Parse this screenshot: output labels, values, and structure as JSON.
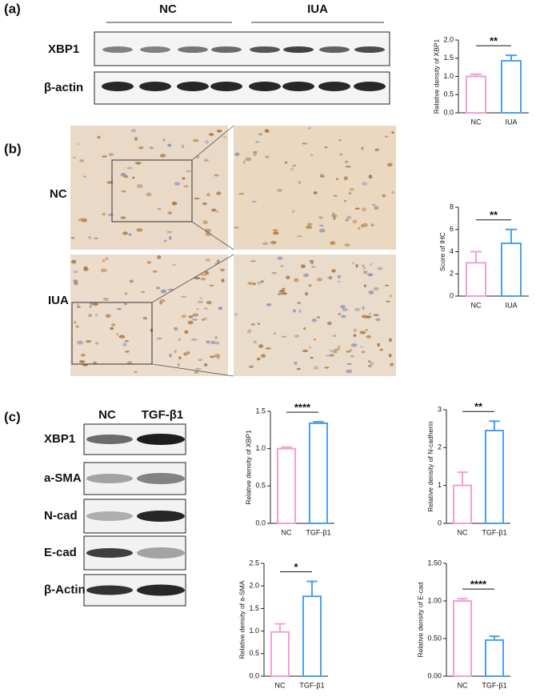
{
  "figure": {
    "a": {
      "label": "(a)",
      "blot_groups": [
        "NC",
        "IUA"
      ],
      "blot_rows": [
        "XBP1",
        "β-actin"
      ]
    },
    "b": {
      "label": "(b)",
      "rows": [
        "NC",
        "IUA"
      ]
    },
    "c": {
      "label": "(c)",
      "blot_groups": [
        "NC",
        "TGF-β1"
      ],
      "blot_rows": [
        "XBP1",
        "a-SMA",
        "N-cad",
        "E-cad",
        "β-Actin"
      ]
    }
  },
  "chart_data": [
    {
      "type": "bar",
      "ylabel": "Relative density of XBP1",
      "categories": [
        "NC",
        "IUA"
      ],
      "values": [
        1.0,
        1.43
      ],
      "errors": [
        0.06,
        0.15
      ],
      "colors": [
        "#f29fd8",
        "#4aa0ee"
      ],
      "ylim": [
        0,
        2
      ],
      "yticks": [
        {
          "value": 0,
          "label": "0.0"
        },
        0.5,
        {
          "value": 1,
          "label": "1.0"
        },
        1.5,
        {
          "value": 2,
          "label": "2.0"
        }
      ],
      "annotation": "**"
    },
    {
      "type": "bar",
      "ylabel": "Score of IHC",
      "categories": [
        "NC",
        "IUA"
      ],
      "values": [
        3.0,
        4.75
      ],
      "errors": [
        1.0,
        1.25
      ],
      "colors": [
        "#f29fd8",
        "#4aa0ee"
      ],
      "ylim": [
        0,
        8
      ],
      "yticks": [
        0,
        2,
        4,
        6,
        8
      ],
      "annotation": "**"
    },
    {
      "type": "bar",
      "ylabel": "Relative density of XBP1",
      "categories": [
        "NC",
        "TGF-β1"
      ],
      "values": [
        1.0,
        1.34
      ],
      "errors": [
        0.02,
        0.02
      ],
      "colors": [
        "#f29fd8",
        "#4aa0ee"
      ],
      "ylim": [
        0,
        1.5
      ],
      "yticks": [
        {
          "value": 0,
          "label": "0.0"
        },
        0.5,
        {
          "value": 1,
          "label": "1.0"
        },
        1.5
      ],
      "annotation": "****"
    },
    {
      "type": "bar",
      "ylabel": "Relative density of N-cadherin",
      "categories": [
        "NC",
        "TGF-β1"
      ],
      "values": [
        1.0,
        2.45
      ],
      "errors": [
        0.35,
        0.25
      ],
      "colors": [
        "#f29fd8",
        "#4aa0ee"
      ],
      "ylim": [
        0,
        3
      ],
      "yticks": [
        0,
        1,
        2,
        3
      ],
      "annotation": "**"
    },
    {
      "type": "bar",
      "ylabel": "Relative density of a-SMA",
      "categories": [
        "NC",
        "TGF-β1"
      ],
      "values": [
        0.98,
        1.77
      ],
      "errors": [
        0.18,
        0.33
      ],
      "colors": [
        "#f29fd8",
        "#4aa0ee"
      ],
      "ylim": [
        0,
        2.5
      ],
      "yticks": [
        {
          "value": 0,
          "label": "0.0"
        },
        0.5,
        {
          "value": 1,
          "label": "1.0"
        },
        1.5,
        {
          "value": 2,
          "label": "2.0"
        },
        2.5
      ],
      "annotation": "*"
    },
    {
      "type": "bar",
      "ylabel": "Relative density of E-cad",
      "categories": [
        "NC",
        "TGF-β1"
      ],
      "values": [
        1.0,
        0.48
      ],
      "errors": [
        0.03,
        0.05
      ],
      "colors": [
        "#f29fd8",
        "#4aa0ee"
      ],
      "ylim": [
        0,
        1.5
      ],
      "yticks": [
        {
          "value": 0,
          "label": "0.00"
        },
        {
          "value": 0.5,
          "label": "0.50"
        },
        {
          "value": 1,
          "label": "1.00"
        },
        {
          "value": 1.5,
          "label": "1.50"
        }
      ],
      "annotation": "****"
    }
  ]
}
